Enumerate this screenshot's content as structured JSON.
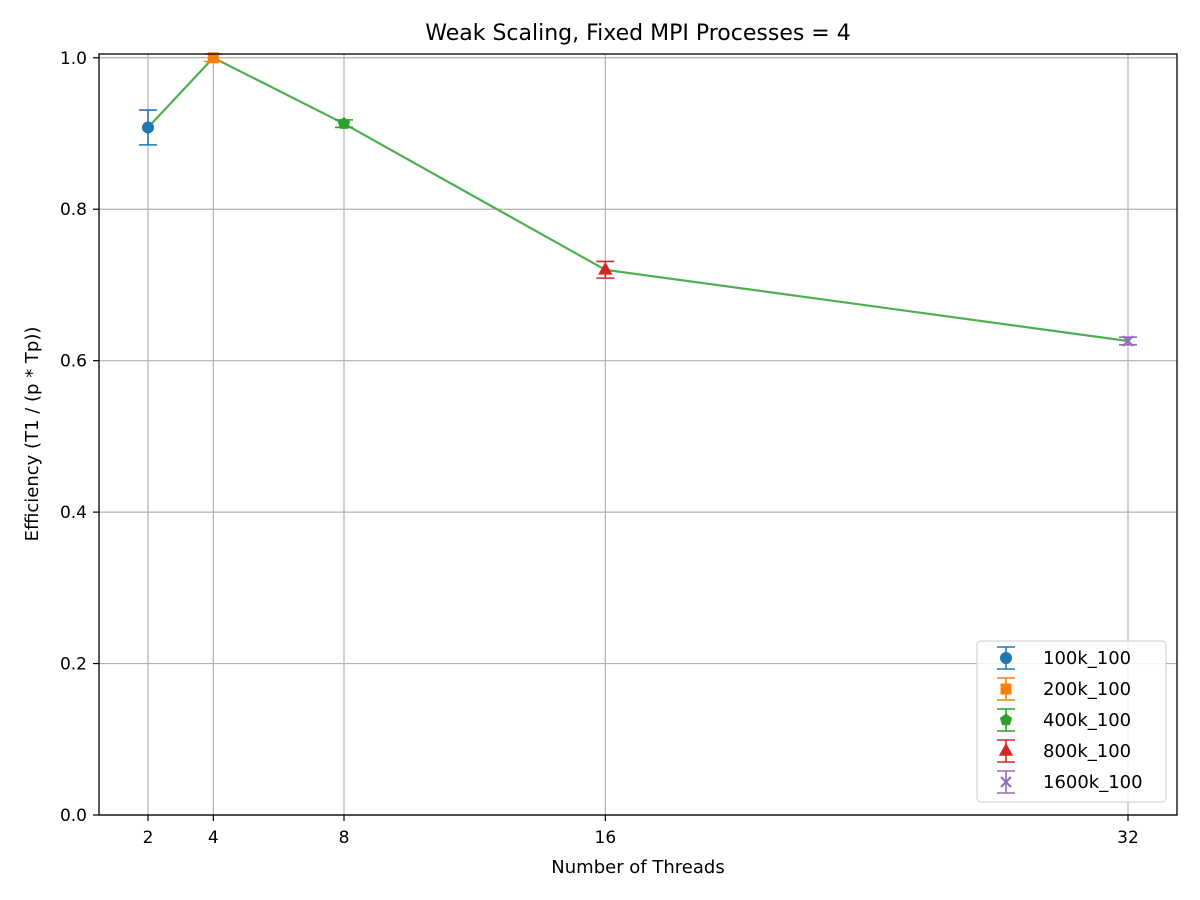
{
  "chart_data": {
    "type": "line",
    "title": "Weak Scaling, Fixed MPI Processes = 4",
    "xlabel": "Number of Threads",
    "ylabel": "Efficiency (T1 / (p * Tp))",
    "xlim": [
      0.5,
      33.5
    ],
    "ylim": [
      0.0,
      1.005
    ],
    "x_ticks": [
      2,
      4,
      8,
      16,
      32
    ],
    "y_ticks": [
      0.0,
      0.2,
      0.4,
      0.6,
      0.8,
      1.0
    ],
    "x_tick_labels": [
      "2",
      "4",
      "8",
      "16",
      "32"
    ],
    "y_tick_labels": [
      "0.0",
      "0.2",
      "0.4",
      "0.6",
      "0.8",
      "1.0"
    ],
    "grid": true,
    "legend_position": "lower-right",
    "trend_line": {
      "color": "#4caf50",
      "x": [
        2,
        4,
        8,
        16,
        32
      ],
      "y": [
        0.908,
        1.0,
        0.913,
        0.72,
        0.626
      ]
    },
    "series": [
      {
        "name": "100k_100",
        "x": 2,
        "y": 0.908,
        "error": 0.023,
        "marker": "circle",
        "color": "#1f77b4"
      },
      {
        "name": "200k_100",
        "x": 4,
        "y": 1.0,
        "error": 0.005,
        "marker": "square",
        "color": "#ff7f0e"
      },
      {
        "name": "400k_100",
        "x": 8,
        "y": 0.913,
        "error": 0.005,
        "marker": "pentagon",
        "color": "#2ca02c"
      },
      {
        "name": "800k_100",
        "x": 16,
        "y": 0.72,
        "error": 0.011,
        "marker": "triangle",
        "color": "#d62728"
      },
      {
        "name": "1600k_100",
        "x": 32,
        "y": 0.626,
        "error": 0.005,
        "marker": "x",
        "color": "#9467bd"
      }
    ]
  }
}
